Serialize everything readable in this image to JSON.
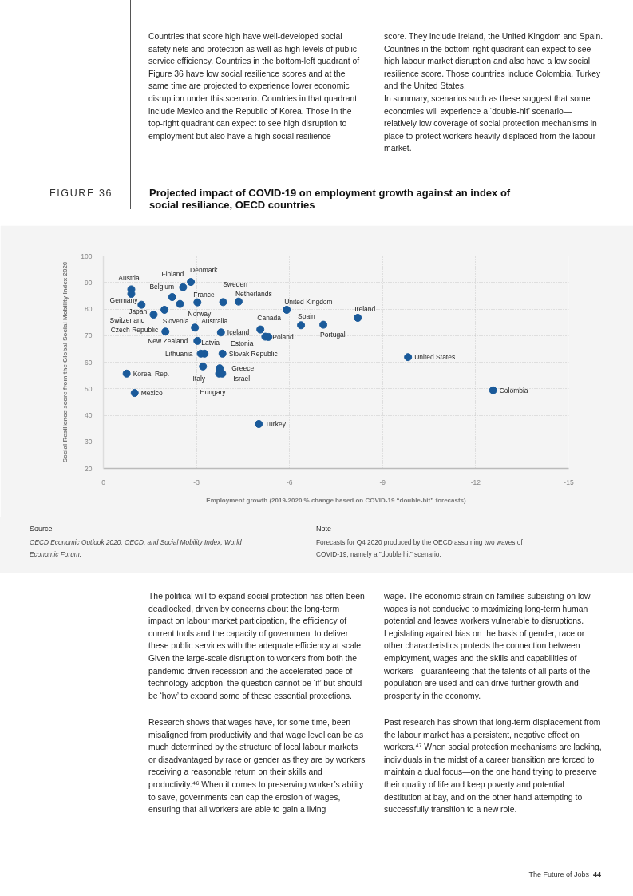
{
  "chart_data": {
    "type": "scatter",
    "title": "Projected impact of COVID-19 on employment growth against an index of social resiliance, OECD countries",
    "xlabel": "Employment growth (2019-2020 % change based on COVID-19 “double-hit” forecasts)",
    "ylabel": "Social Resilience score from the Global Social Mobility Index 2020",
    "xlim": [
      0,
      -15
    ],
    "xticks": [
      0,
      -3,
      -6,
      -9,
      -12,
      -15
    ],
    "ylim": [
      20,
      100
    ],
    "yticks": [
      20,
      30,
      40,
      50,
      60,
      70,
      80,
      90,
      100
    ],
    "grid": true,
    "marker": "circle",
    "series": [
      {
        "color": "#1a5a9a",
        "x": [
          -0.9,
          -0.9,
          -1.23,
          -1.62,
          -1.97,
          -2.22,
          -2.57,
          -2.82,
          -2.47,
          -3.03,
          -2.0,
          -2.95,
          -3.03,
          -3.26,
          -3.14,
          -3.21,
          -0.75,
          -1.01,
          -3.86,
          -4.36,
          -3.79,
          -3.84,
          -3.75,
          -3.83,
          -3.73,
          -5.06,
          -5.22,
          -5.32,
          -5.91,
          -6.37,
          -7.09,
          -8.2,
          -5.01,
          -9.82,
          -12.56
        ],
        "values": [
          87.4,
          85.7,
          81.6,
          77.9,
          79.7,
          84.5,
          88.2,
          90.2,
          81.9,
          82.5,
          71.5,
          73.0,
          68.0,
          63.2,
          63.2,
          58.4,
          55.7,
          48.4,
          82.6,
          82.8,
          71.2,
          63.2,
          57.7,
          55.7,
          55.7,
          72.3,
          69.6,
          69.5,
          79.7,
          73.9,
          74.1,
          76.7,
          36.7,
          61.9,
          49.4
        ]
      }
    ],
    "annotations": [
      "Countries that score high have well-developed social safety nets and protection as well as high levels of public service efficiency. Countries in the bottom-left quadrant of Figure 36 have low social resilience scores and at the same time are projected to experience lower economic disruption under this scenario. Countries in that quadrant include Mexico and the Republic of Korea. Those in the top-right quadrant can expect to see high disruption to employment but also have a high social resilience",
      "score. They include Ireland, the United Kingdom and Spain. Countries in the bottom-right quadrant can expect to see high labour market disruption and also have a low social resilience score. Those countries include Colombia, Turkey and the United States.",
      "In summary, scenarios such as these suggest that some economies will experience a ‘double-hit’ scenario—relatively low coverage of social protection mechanisms in place to protect workers heavily displaced from the labour market.",
      "FIGURE 36",
      "Source",
      "OECD Economic Outlook 2020, OECD, and Social Mobility Index, World Economic Forum.",
      "Note",
      "Forecasts for Q4 2020 produced by the OECD assuming two waves of COVID-19, namely a \"double hit\" scenario.",
      "The political will to expand social protection has often been deadlocked, driven by concerns about the long-term impact on labour market participation, the efficiency of current tools and the capacity of government to deliver these public services with the adequate efficiency at scale. Given the large-scale disruption to workers from both the pandemic-driven recession and the accelerated pace of technology adoption, the question cannot be ‘if’ but should be ‘how’ to expand some of these essential protections.",
      "Research shows that wages have, for some time, been misaligned from productivity and that wage level can be as much determined by the structure of local labour markets or disadvantaged by race or gender as they are by workers receiving a reasonable return on their skills and productivity.⁴⁶ When it comes to preserving worker’s ability to save, governments can cap the erosion of wages, ensuring that all workers are able to gain a living",
      "wage. The economic strain on families subsisting on low wages is not conducive to maximizing long-term human potential and leaves workers vulnerable to disruptions. Legislating against bias on the basis of gender, race or other characteristics protects the connection between employment, wages and the skills and capabilities of workers—guaranteeing that the talents of all parts of the population are used and can drive further growth and prosperity in the economy.",
      "Past research has shown that long-term displacement from the labour market has a persistent, negative effect on workers.⁴⁷ When social protection mechanisms are lacking, individuals in the midst of a career transition are forced to maintain a dual focus—on the one hand trying to preserve their quality of life and keep poverty and potential destitution at bay, and on the other hand attempting to successfully transition to a new role.",
      "The Future of Jobs",
      "44",
      {
        "text": "Austria",
        "x": -0.9,
        "y": 87.4
      },
      {
        "text": "Germany",
        "x": -0.9,
        "y": 85.7
      },
      {
        "text": "Japan",
        "x": -1.23,
        "y": 81.6
      },
      {
        "text": "Switzerland",
        "x": -1.62,
        "y": 77.9
      },
      {
        "text": "Slovenia",
        "x": -1.97,
        "y": 79.7
      },
      {
        "text": "Belgium",
        "x": -2.22,
        "y": 84.5
      },
      {
        "text": "Finland",
        "x": -2.57,
        "y": 88.2
      },
      {
        "text": "Denmark",
        "x": -2.82,
        "y": 90.2
      },
      {
        "text": "Norway",
        "x": -2.47,
        "y": 81.9
      },
      {
        "text": "France",
        "x": -3.03,
        "y": 82.5
      },
      {
        "text": "Czech Republic",
        "x": -2.0,
        "y": 71.5
      },
      {
        "text": "Australia",
        "x": -2.95,
        "y": 73.0
      },
      {
        "text": "New Zealand",
        "x": -3.03,
        "y": 68.0
      },
      {
        "text": "Latvia",
        "x": -3.26,
        "y": 63.2
      },
      {
        "text": "Lithuania",
        "x": -3.14,
        "y": 63.2
      },
      {
        "text": "Italy",
        "x": -3.21,
        "y": 58.4
      },
      {
        "text": "Korea, Rep.",
        "x": -0.75,
        "y": 55.7
      },
      {
        "text": "Mexico",
        "x": -1.01,
        "y": 48.4
      },
      {
        "text": "Sweden",
        "x": -3.86,
        "y": 82.6
      },
      {
        "text": "Netherlands",
        "x": -4.36,
        "y": 82.8
      },
      {
        "text": "Iceland",
        "x": -3.79,
        "y": 71.2
      },
      {
        "text": "Slovak Republic",
        "x": -3.84,
        "y": 63.2
      },
      {
        "text": "Greece",
        "x": -3.75,
        "y": 57.7
      },
      {
        "text": "Israel",
        "x": -3.83,
        "y": 55.7
      },
      {
        "text": "Hungary",
        "x": -3.73,
        "y": 55.7
      },
      {
        "text": "Canada",
        "x": -5.06,
        "y": 72.3
      },
      {
        "text": "Estonia",
        "x": -5.22,
        "y": 69.6
      },
      {
        "text": "Poland",
        "x": -5.32,
        "y": 69.5
      },
      {
        "text": "United Kingdom",
        "x": -5.91,
        "y": 79.7
      },
      {
        "text": "Spain",
        "x": -6.37,
        "y": 73.9
      },
      {
        "text": "Portugal",
        "x": -7.09,
        "y": 74.1
      },
      {
        "text": "Ireland",
        "x": -8.2,
        "y": 76.7
      },
      {
        "text": "Turkey",
        "x": -5.01,
        "y": 36.7
      },
      {
        "text": "United States",
        "x": -9.82,
        "y": 61.9
      },
      {
        "text": "Colombia",
        "x": -12.56,
        "y": 49.4
      }
    ]
  }
}
